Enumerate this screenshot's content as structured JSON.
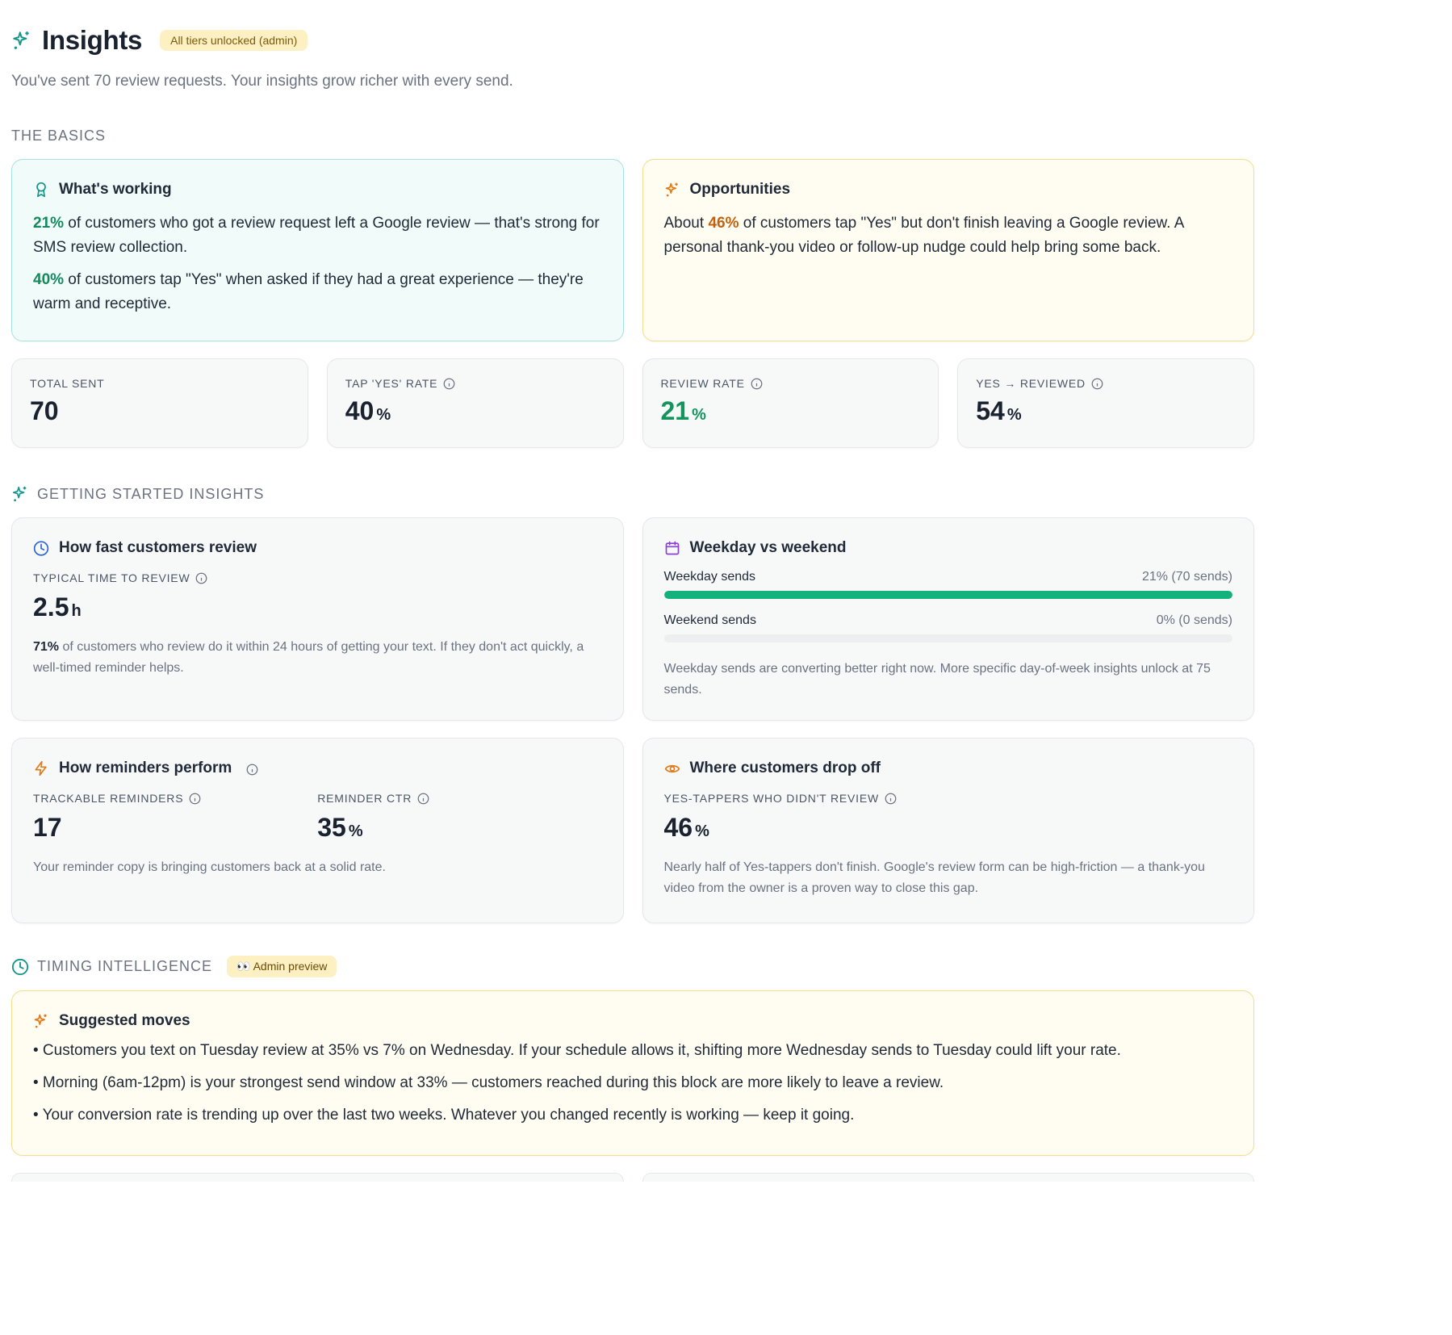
{
  "header": {
    "title": "Insights",
    "badge": "All tiers unlocked (admin)",
    "subtitle": "You've sent 70 review requests. Your insights grow richer with every send."
  },
  "basics": {
    "label": "THE BASICS",
    "working": {
      "title": "What's working",
      "p1_pct": "21%",
      "p1_text": " of customers who got a review request left a Google review — that's strong for SMS review collection.",
      "p2_pct": "40%",
      "p2_text": " of customers tap \"Yes\" when asked if they had a great experience — they're warm and receptive."
    },
    "opportunities": {
      "title": "Opportunities",
      "prefix": "About ",
      "pct": "46%",
      "text": " of customers tap \"Yes\" but don't finish leaving a Google review. A personal thank-you video or follow-up nudge could help bring some back."
    },
    "stats": [
      {
        "label": "TOTAL SENT",
        "value": "70",
        "unit": ""
      },
      {
        "label": "TAP 'YES' RATE",
        "value": "40",
        "unit": "%"
      },
      {
        "label": "REVIEW RATE",
        "value": "21",
        "unit": "%"
      },
      {
        "label": "YES → REVIEWED",
        "value": "54",
        "unit": "%"
      }
    ]
  },
  "getting_started": {
    "label": "GETTING STARTED INSIGHTS",
    "speed": {
      "title": "How fast customers review",
      "metric_label": "TYPICAL TIME TO REVIEW",
      "value": "2.5",
      "unit": "h",
      "pct": "71%",
      "text": " of customers who review do it within 24 hours of getting your text. If they don't act quickly, a well-timed reminder helps."
    },
    "weekday": {
      "title": "Weekday vs weekend",
      "weekday_label": "Weekday sends",
      "weekday_value": "21% (70 sends)",
      "weekday_fill": 1.0,
      "weekend_label": "Weekend sends",
      "weekend_value": "0% (0 sends)",
      "weekend_fill": 0.0,
      "note": "Weekday sends are converting better right now. More specific day-of-week insights unlock at 75 sends."
    },
    "reminders": {
      "title": "How reminders perform",
      "trackable_label": "TRACKABLE REMINDERS",
      "trackable_value": "17",
      "ctr_label": "REMINDER CTR",
      "ctr_value": "35",
      "ctr_unit": "%",
      "note": "Your reminder copy is bringing customers back at a solid rate."
    },
    "dropoff": {
      "title": "Where customers drop off",
      "metric_label": "YES-TAPPERS WHO DIDN'T REVIEW",
      "value": "46",
      "unit": "%",
      "note": "Nearly half of Yes-tappers don't finish. Google's review form can be high-friction — a thank-you video from the owner is a proven way to close this gap."
    }
  },
  "timing": {
    "label": "TIMING INTELLIGENCE",
    "badge": "👀 Admin preview",
    "suggested": {
      "title": "Suggested moves",
      "bullets": [
        "• Customers you text on Tuesday review at 35% vs 7% on Wednesday. If your schedule allows it, shifting more Wednesday sends to Tuesday could lift your rate.",
        "• Morning (6am-12pm) is your strongest send window at 33% — customers reached during this block are more likely to leave a review.",
        "• Your conversion rate is trending up over the last two weeks. Whatever you changed recently is working — keep it going."
      ]
    }
  },
  "colors": {
    "teal": "#14958a",
    "green": "#14935d",
    "orange": "#e07a1b",
    "blue": "#2f64d6",
    "purple": "#8b3fd9",
    "bar_green": "#13b27c"
  }
}
